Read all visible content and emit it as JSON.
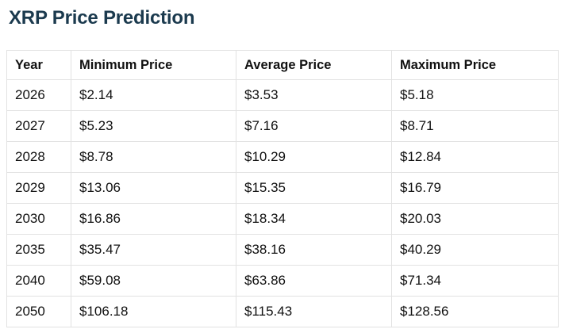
{
  "page": {
    "title": "XRP Price Prediction"
  },
  "table": {
    "columns": {
      "year": "Year",
      "min": "Minimum Price",
      "avg": "Average Price",
      "max": "Maximum Price"
    },
    "rows": [
      {
        "year": "2026",
        "min": "$2.14",
        "avg": "$3.53",
        "max": "$5.18"
      },
      {
        "year": "2027",
        "min": "$5.23",
        "avg": "$7.16",
        "max": "$8.71"
      },
      {
        "year": "2028",
        "min": "$8.78",
        "avg": "$10.29",
        "max": "$12.84"
      },
      {
        "year": "2029",
        "min": "$13.06",
        "avg": "$15.35",
        "max": "$16.79"
      },
      {
        "year": "2030",
        "min": "$16.86",
        "avg": "$18.34",
        "max": "$20.03"
      },
      {
        "year": "2035",
        "min": "$35.47",
        "avg": "$38.16",
        "max": "$40.29"
      },
      {
        "year": "2040",
        "min": "$59.08",
        "avg": "$63.86",
        "max": "$71.34"
      },
      {
        "year": "2050",
        "min": "$106.18",
        "avg": "$115.43",
        "max": "$128.56"
      }
    ]
  },
  "colors": {
    "title": "#1b3a4e",
    "body_text": "#111111",
    "border": "#e2e2e2",
    "background": "#ffffff"
  },
  "chart_data": {
    "type": "table",
    "title": "XRP Price Prediction",
    "columns": [
      "Year",
      "Minimum Price",
      "Average Price",
      "Maximum Price"
    ],
    "categories": [
      "2026",
      "2027",
      "2028",
      "2029",
      "2030",
      "2035",
      "2040",
      "2050"
    ],
    "series": [
      {
        "name": "Minimum Price",
        "values": [
          2.14,
          5.23,
          8.78,
          13.06,
          16.86,
          35.47,
          59.08,
          106.18
        ]
      },
      {
        "name": "Average Price",
        "values": [
          3.53,
          7.16,
          10.29,
          15.35,
          18.34,
          38.16,
          63.86,
          115.43
        ]
      },
      {
        "name": "Maximum Price",
        "values": [
          5.18,
          8.71,
          12.84,
          16.79,
          20.03,
          40.29,
          71.34,
          128.56
        ]
      }
    ],
    "unit": "USD"
  }
}
